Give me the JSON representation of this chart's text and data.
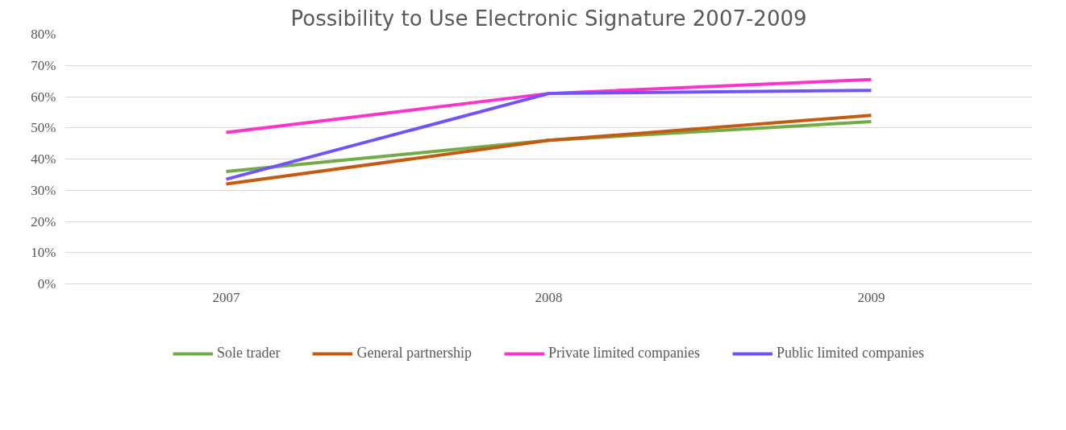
{
  "chart_data": {
    "type": "line",
    "title": "Possibility to Use Electronic Signature 2007-2009",
    "categories": [
      "2007",
      "2008",
      "2009"
    ],
    "series": [
      {
        "name": "Sole trader",
        "color": "#70ad47",
        "values": [
          36,
          46,
          52
        ]
      },
      {
        "name": "General partnership",
        "color": "#c55a11",
        "values": [
          32,
          46,
          54
        ]
      },
      {
        "name": "Private limited companies",
        "color": "#ff33cc",
        "values": [
          48.5,
          61,
          65.5
        ]
      },
      {
        "name": "Public limited companies",
        "color": "#7152ff",
        "values": [
          33.5,
          61,
          62
        ]
      }
    ],
    "ylim": [
      0,
      80
    ],
    "yticks": [
      {
        "value": 0,
        "label": "0%"
      },
      {
        "value": 10,
        "label": "10%"
      },
      {
        "value": 20,
        "label": "20%"
      },
      {
        "value": 30,
        "label": "30%"
      },
      {
        "value": 40,
        "label": "40%"
      },
      {
        "value": 50,
        "label": "50%"
      },
      {
        "value": 60,
        "label": "60%"
      },
      {
        "value": 70,
        "label": "70%"
      },
      {
        "value": 80,
        "label": "80%"
      }
    ],
    "grid": "y",
    "legend": "bottom",
    "marker": "none",
    "line_style": "solid"
  }
}
